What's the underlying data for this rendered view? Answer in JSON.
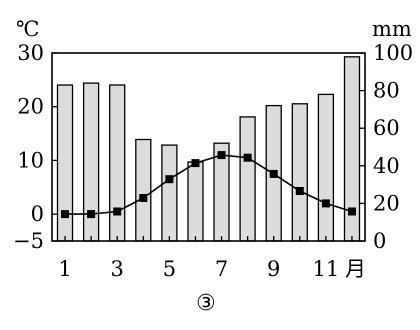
{
  "chart_data": {
    "type": "bar+line",
    "figure_label": "③",
    "x": {
      "unit_label": "月",
      "months": [
        1,
        2,
        3,
        4,
        5,
        6,
        7,
        8,
        9,
        10,
        11,
        12
      ],
      "tick_labels": [
        "1",
        "3",
        "5",
        "7",
        "9",
        "11"
      ]
    },
    "left_axis": {
      "unit_label": "℃",
      "ylim": [
        -5,
        30
      ],
      "tick_labels": [
        "30",
        "20",
        "10",
        "0",
        "−5"
      ]
    },
    "right_axis": {
      "unit_label": "mm",
      "ylim": [
        0,
        100
      ],
      "tick_labels": [
        "100",
        "80",
        "60",
        "40",
        "20",
        "0"
      ]
    },
    "series": [
      {
        "kind": "bar",
        "axis": "right",
        "values": [
          83,
          84,
          83,
          54,
          51,
          42,
          52,
          66,
          72,
          73,
          78,
          98
        ]
      },
      {
        "kind": "line",
        "axis": "left",
        "marker": "square",
        "values": [
          0,
          0,
          0.5,
          3,
          6.5,
          9.5,
          11,
          10.5,
          7.5,
          4.3,
          2,
          0.5
        ]
      }
    ],
    "grid": false
  }
}
